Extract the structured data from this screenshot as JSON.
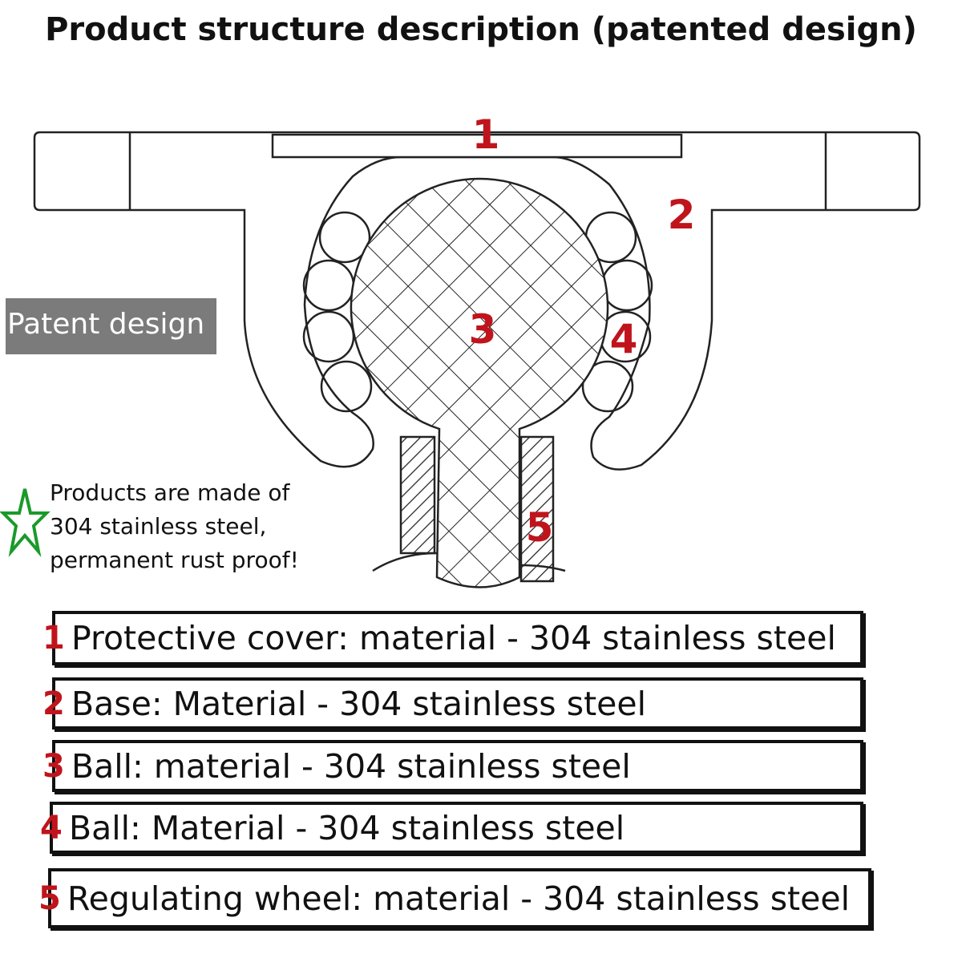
{
  "title": "Product structure description (patented design)",
  "badge": "Patent design",
  "note": [
    "Products are made of",
    "304 stainless steel,",
    "permanent rust proof!"
  ],
  "callouts": [
    "1",
    "2",
    "3",
    "4",
    "5"
  ],
  "parts": [
    {
      "num": "1",
      "text": "Protective cover: material - 304 stainless steel"
    },
    {
      "num": "2",
      "text": "Base: Material - 304 stainless steel"
    },
    {
      "num": "3",
      "text": "Ball: material - 304 stainless steel"
    },
    {
      "num": "4",
      "text": "Ball: Material - 304 stainless steel"
    },
    {
      "num": "5",
      "text": "Regulating wheel: material - 304 stainless steel"
    }
  ],
  "colors": {
    "callout": "#c0141c",
    "star": "#1a9a2a",
    "badge": "#7b7b7b"
  },
  "icons": {
    "star": "star-outline-icon"
  }
}
